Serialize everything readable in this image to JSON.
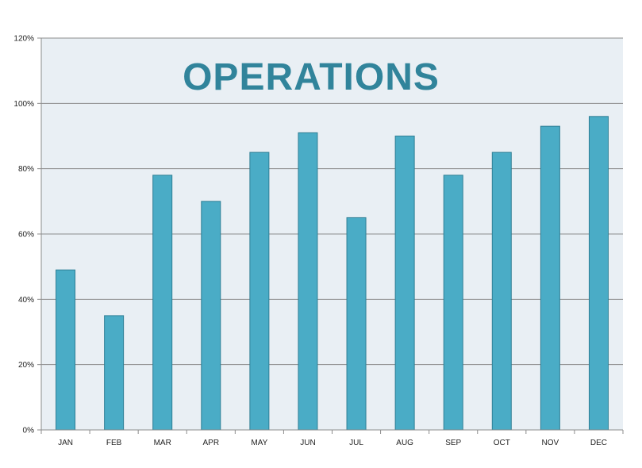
{
  "chart_data": {
    "type": "bar",
    "title": "OPERATIONS",
    "xlabel": "",
    "ylabel": "",
    "categories": [
      "JAN",
      "FEB",
      "MAR",
      "APR",
      "MAY",
      "JUN",
      "JUL",
      "AUG",
      "SEP",
      "OCT",
      "NOV",
      "DEC"
    ],
    "values": [
      49,
      35,
      78,
      70,
      85,
      91,
      65,
      90,
      78,
      85,
      93,
      96
    ],
    "y_unit": "%",
    "ylim": [
      0,
      120
    ],
    "yticks": [
      0,
      20,
      40,
      60,
      80,
      100,
      120
    ],
    "ytick_labels": [
      "0%",
      "20%",
      "40%",
      "60%",
      "80%",
      "100%",
      "120%"
    ],
    "grid": true,
    "legend": "none"
  },
  "colors": {
    "plot_background": "#e9eff4",
    "bar_fill": "#4aacc6",
    "bar_stroke": "#2f7f95",
    "title": "#31849b",
    "gridline": "#8c8c8c",
    "axis": "#8c8c8c",
    "tick_text": "#222222"
  }
}
